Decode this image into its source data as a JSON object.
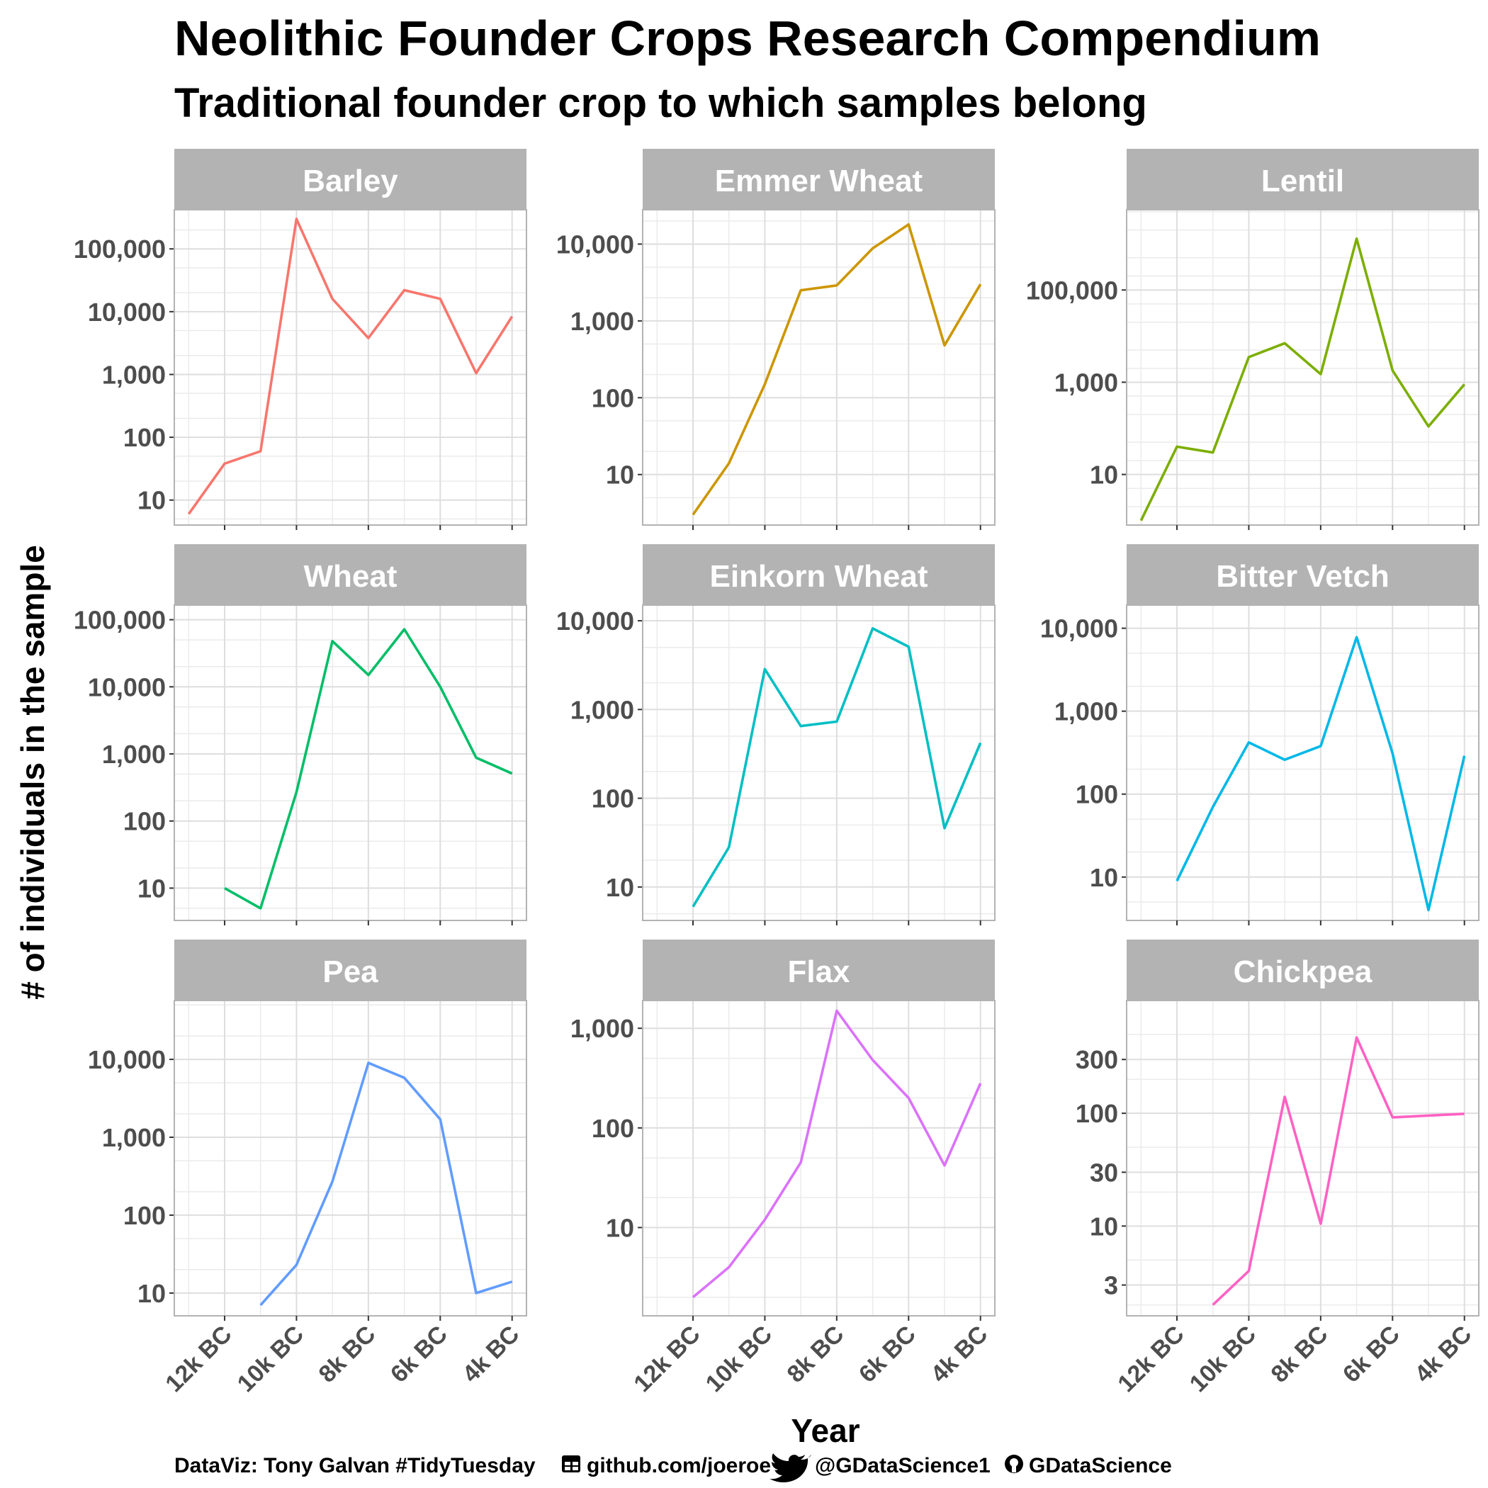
{
  "title": "Neolithic Founder Crops Research Compendium",
  "subtitle": "Traditional founder crop to which samples belong",
  "caption": {
    "credit": "DataViz: Tony Galvan #TidyTuesday",
    "github_data": "github.com/joeroe",
    "twitter": "@GDataScience1",
    "github_user": "GDataScience"
  },
  "icons": [
    "table-icon",
    "twitter-icon",
    "github-icon"
  ],
  "chart_data": {
    "type": "line",
    "xlabel": "Year",
    "ylabel": "# of individuals in the sample",
    "y_scale": "log10",
    "x_ticks": [
      {
        "value": -12000,
        "label": "12k BC"
      },
      {
        "value": -10000,
        "label": "10k BC"
      },
      {
        "value": -8000,
        "label": "8k BC"
      },
      {
        "value": -6000,
        "label": "6k BC"
      },
      {
        "value": -4000,
        "label": "4k BC"
      }
    ],
    "xlim": [
      -13400,
      -3600
    ],
    "grid": true,
    "legend": "none",
    "panels": [
      {
        "name": "Barley",
        "color": "#F8766D",
        "ylim": [
          4,
          420000
        ],
        "yticks": [
          {
            "v": 10,
            "l": "10"
          },
          {
            "v": 100,
            "l": "100"
          },
          {
            "v": 1000,
            "l": "1,000"
          },
          {
            "v": 10000,
            "l": "10,000"
          },
          {
            "v": 100000,
            "l": "100,000"
          }
        ],
        "x": [
          -13000,
          -12000,
          -11000,
          -10000,
          -9000,
          -8000,
          -7000,
          -6000,
          -5000,
          -4000
        ],
        "values": [
          6,
          38,
          60,
          300000,
          16000,
          3800,
          22000,
          16000,
          1050,
          8400
        ]
      },
      {
        "name": "Emmer Wheat",
        "color": "#CD9600",
        "ylim": [
          2.2,
          28000
        ],
        "yticks": [
          {
            "v": 10,
            "l": "10"
          },
          {
            "v": 100,
            "l": "100"
          },
          {
            "v": 1000,
            "l": "1,000"
          },
          {
            "v": 10000,
            "l": "10,000"
          }
        ],
        "x": [
          -12000,
          -11000,
          -10000,
          -9000,
          -8000,
          -7000,
          -6000,
          -5000,
          -4000
        ],
        "values": [
          3,
          14,
          150,
          2500,
          2900,
          8800,
          18000,
          480,
          3000
        ]
      },
      {
        "name": "Lentil",
        "color": "#7CAE00",
        "ylim": [
          0.8,
          5500000
        ],
        "yticks": [
          {
            "v": 10,
            "l": "10"
          },
          {
            "v": 1000,
            "l": "1,000"
          },
          {
            "v": 100000,
            "l": "100,000"
          }
        ],
        "x": [
          -13000,
          -12000,
          -11000,
          -10000,
          -9000,
          -8000,
          -7000,
          -6000,
          -5000,
          -4000
        ],
        "values": [
          1,
          40,
          30,
          3500,
          7000,
          1500,
          1300000,
          1800,
          110,
          900
        ]
      },
      {
        "name": "Wheat",
        "color": "#00BE67",
        "ylim": [
          3.3,
          165000
        ],
        "yticks": [
          {
            "v": 10,
            "l": "10"
          },
          {
            "v": 100,
            "l": "100"
          },
          {
            "v": 1000,
            "l": "1,000"
          },
          {
            "v": 10000,
            "l": "10,000"
          },
          {
            "v": 100000,
            "l": "100,000"
          }
        ],
        "x": [
          -12000,
          -11000,
          -10000,
          -9000,
          -8000,
          -7000,
          -6000,
          -5000,
          -4000
        ],
        "values": [
          10,
          5,
          270,
          48000,
          15000,
          72000,
          10000,
          880,
          510
        ]
      },
      {
        "name": "Einkorn Wheat",
        "color": "#00BFC4",
        "ylim": [
          4.2,
          15000
        ],
        "yticks": [
          {
            "v": 10,
            "l": "10"
          },
          {
            "v": 100,
            "l": "100"
          },
          {
            "v": 1000,
            "l": "1,000"
          },
          {
            "v": 10000,
            "l": "10,000"
          }
        ],
        "x": [
          -12000,
          -11000,
          -10000,
          -9000,
          -8000,
          -7000,
          -6000,
          -5000,
          -4000
        ],
        "values": [
          6,
          28,
          2850,
          650,
          730,
          8200,
          5100,
          46,
          420
        ]
      },
      {
        "name": "Bitter Vetch",
        "color": "#00B8E7",
        "ylim": [
          3.0,
          19000
        ],
        "yticks": [
          {
            "v": 10,
            "l": "10"
          },
          {
            "v": 100,
            "l": "100"
          },
          {
            "v": 1000,
            "l": "1,000"
          },
          {
            "v": 10000,
            "l": "10,000"
          }
        ],
        "x": [
          -12000,
          -11000,
          -10000,
          -9000,
          -8000,
          -7000,
          -6000,
          -5000,
          -4000
        ],
        "values": [
          9,
          70,
          420,
          260,
          380,
          7800,
          310,
          4,
          290
        ]
      },
      {
        "name": "Pea",
        "color": "#619CFF",
        "ylim": [
          5.1,
          57000
        ],
        "yticks": [
          {
            "v": 10,
            "l": "10"
          },
          {
            "v": 100,
            "l": "100"
          },
          {
            "v": 1000,
            "l": "1,000"
          },
          {
            "v": 10000,
            "l": "10,000"
          }
        ],
        "x": [
          -11000,
          -10000,
          -9000,
          -8000,
          -7000,
          -6000,
          -5000,
          -4000
        ],
        "values": [
          7,
          23,
          270,
          9000,
          5800,
          1700,
          10,
          14
        ]
      },
      {
        "name": "Flax",
        "color": "#DB72FB",
        "ylim": [
          1.3,
          1900
        ],
        "yticks": [
          {
            "v": 10,
            "l": "10"
          },
          {
            "v": 100,
            "l": "100"
          },
          {
            "v": 1000,
            "l": "1,000"
          }
        ],
        "x": [
          -12000,
          -11000,
          -10000,
          -9000,
          -8000,
          -7000,
          -6000,
          -5000,
          -4000
        ],
        "values": [
          2,
          4,
          12,
          45,
          1500,
          480,
          200,
          42,
          280
        ]
      },
      {
        "name": "Chickpea",
        "color": "#FF61C3",
        "ylim": [
          1.6,
          1000
        ],
        "yticks": [
          {
            "v": 3,
            "l": "3"
          },
          {
            "v": 10,
            "l": "10"
          },
          {
            "v": 30,
            "l": "30"
          },
          {
            "v": 100,
            "l": "100"
          },
          {
            "v": 300,
            "l": "300"
          }
        ],
        "x": [
          -11000,
          -10000,
          -9000,
          -8000,
          -7000,
          -6000,
          -4000
        ],
        "values": [
          2,
          4,
          140,
          10.5,
          470,
          92,
          99
        ]
      }
    ]
  }
}
